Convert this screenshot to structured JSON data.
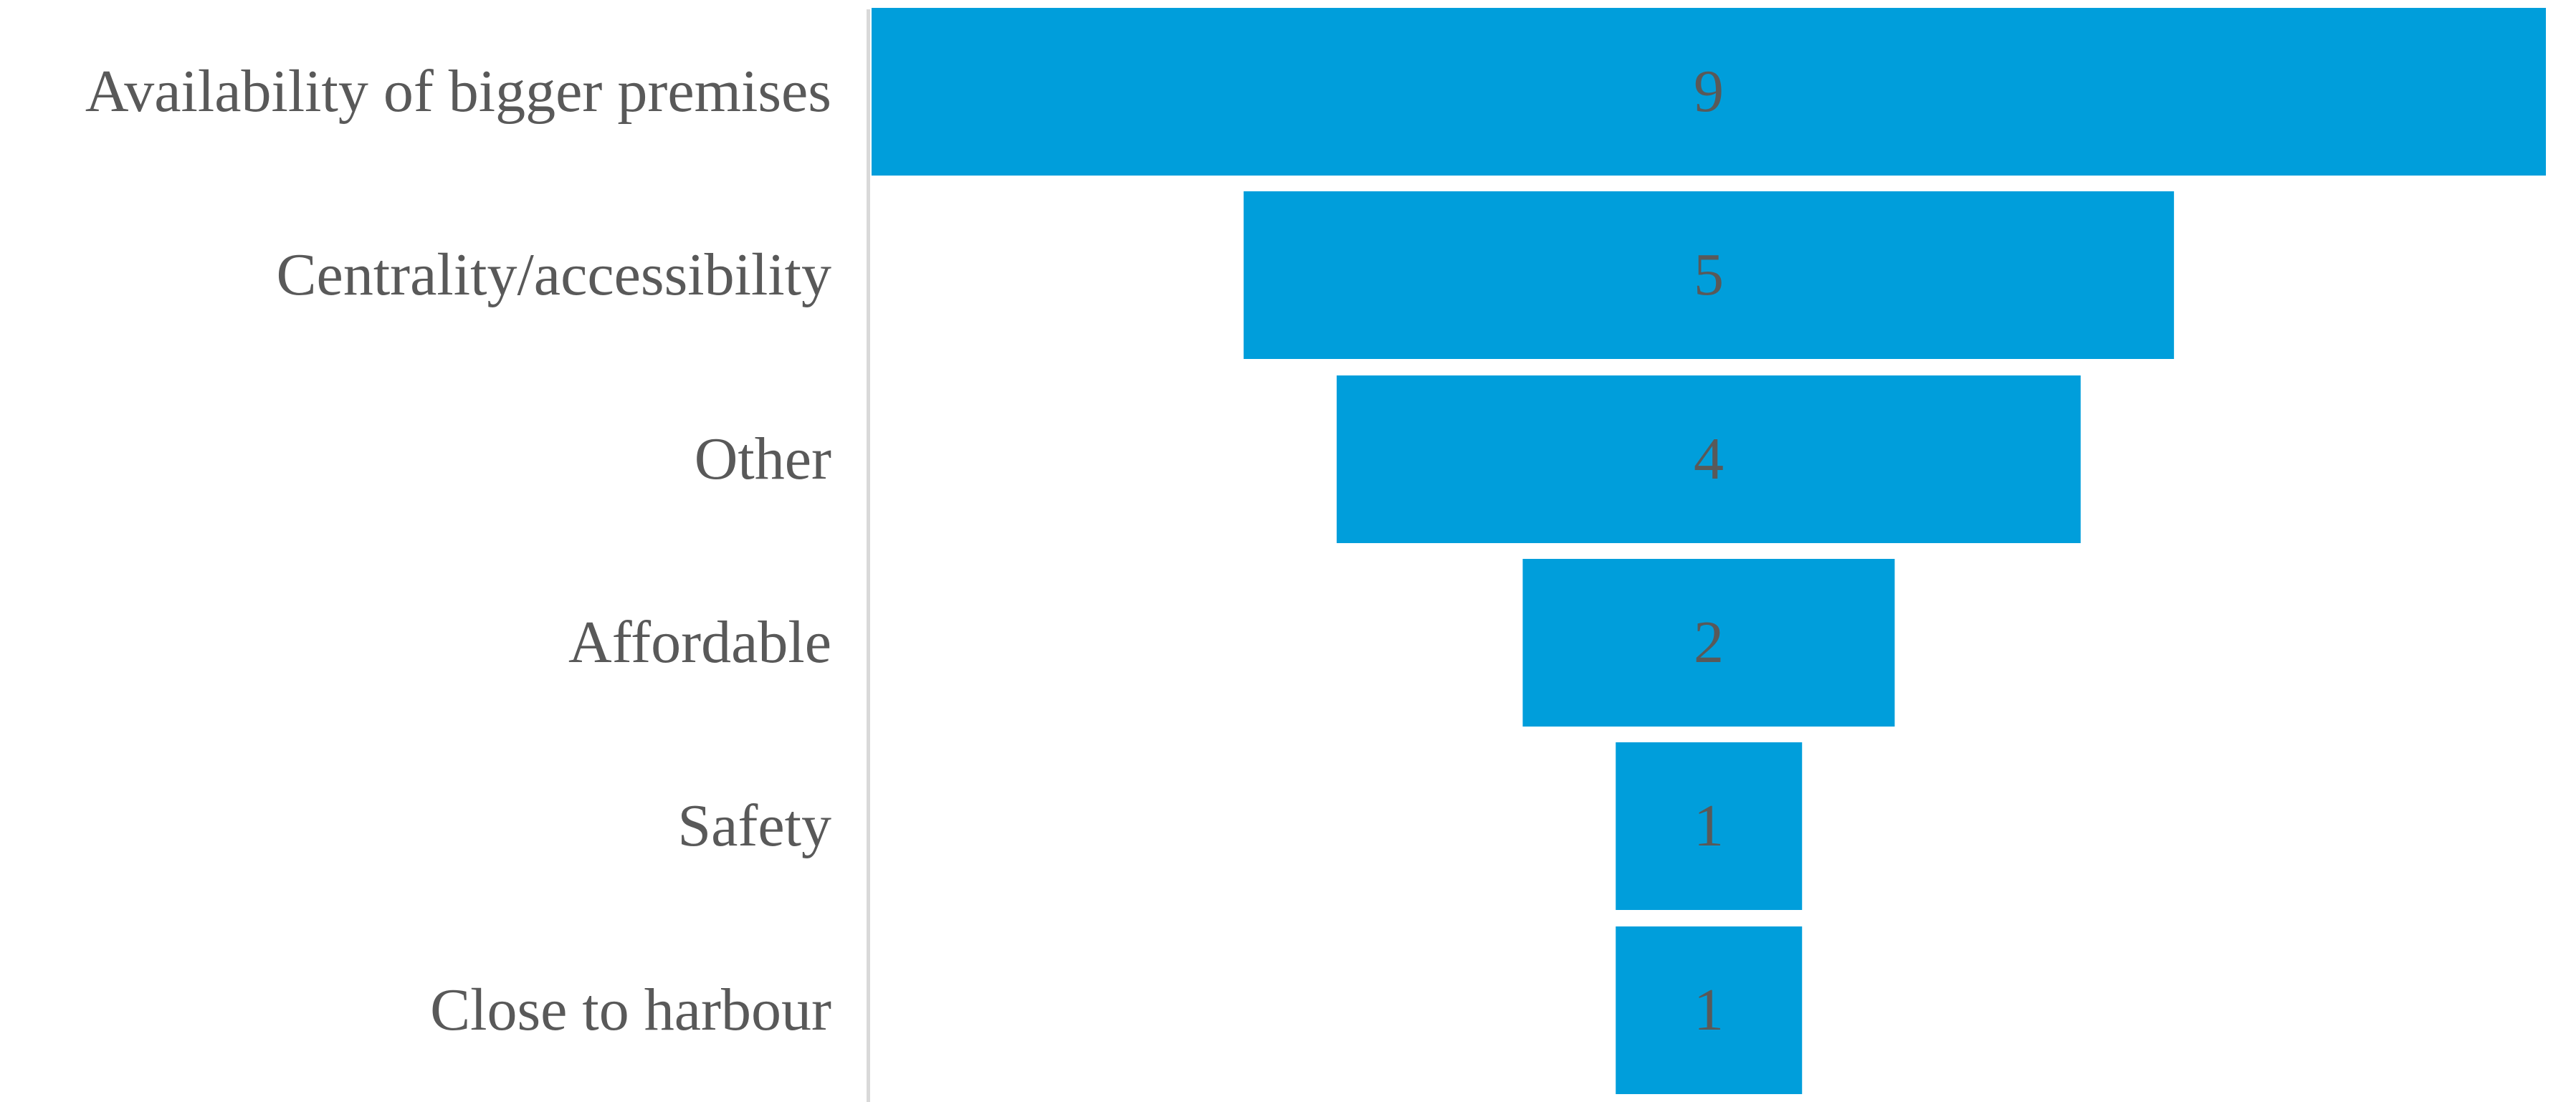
{
  "chart": {
    "accent_color": "#009EDB",
    "label_color": "#595959",
    "axis_line_color": "#D9D9D9",
    "background_color": "#FFFFFF"
  },
  "chart_data": {
    "type": "bar",
    "variant": "funnel",
    "orientation": "horizontal-centered",
    "title": "",
    "xlabel": "",
    "ylabel": "",
    "legend": "none",
    "grid": false,
    "data_labels_shown": true,
    "max_value": 9,
    "categories": [
      "Availability of bigger premises",
      "Centrality/accessibility",
      "Other",
      "Affordable",
      "Safety",
      "Close to harbour"
    ],
    "values": [
      9,
      5,
      4,
      2,
      1,
      1
    ]
  }
}
